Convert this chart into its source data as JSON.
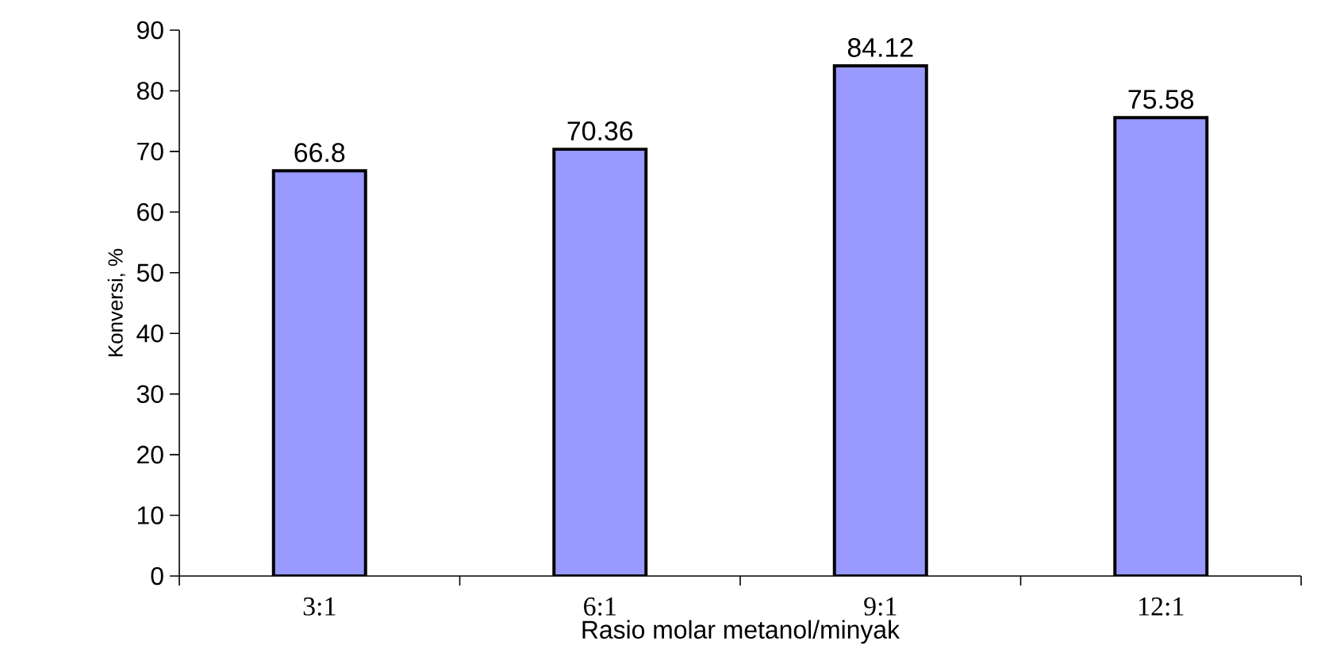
{
  "chart_data": {
    "type": "bar",
    "categories": [
      "3:1",
      "6:1",
      "9:1",
      "12:1"
    ],
    "values": [
      66.8,
      70.36,
      84.12,
      75.58
    ],
    "color": "#9999ff",
    "xlabel": "Rasio molar metanol/minyak",
    "ylabel": "Konversi, %",
    "ylim": [
      0,
      90
    ],
    "yticks": [
      0,
      10,
      20,
      30,
      40,
      50,
      60,
      70,
      80,
      90
    ],
    "data_labels": true
  }
}
